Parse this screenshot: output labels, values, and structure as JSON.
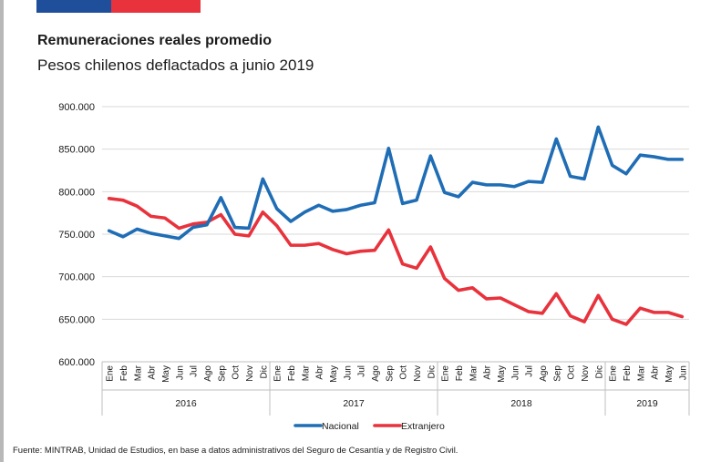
{
  "header": {
    "title": "Remuneraciones reales promedio",
    "subtitle": "Pesos chilenos deflactados a junio 2019"
  },
  "footer": {
    "source": "Fuente: MINTRAB, Unidad de Estudios, en base a datos administrativos del Seguro de Cesantía y de Registro Civil."
  },
  "colors": {
    "nacional": "#1f6db5",
    "extranjero": "#e8323c",
    "grid": "#d9d9d9",
    "flag_blue": "#1f4e9a",
    "flag_red": "#e8323c"
  },
  "chart_data": {
    "type": "line",
    "title": "Remuneraciones reales promedio",
    "subtitle": "Pesos chilenos deflactados a junio 2019",
    "xlabel": "",
    "ylabel": "",
    "ylim": [
      600000,
      900000
    ],
    "yticks": [
      600000,
      650000,
      700000,
      750000,
      800000,
      850000,
      900000
    ],
    "ytick_labels": [
      "600.000",
      "650.000",
      "700.000",
      "750.000",
      "800.000",
      "850.000",
      "900.000"
    ],
    "grid": true,
    "legend": "bottom-center",
    "years": [
      {
        "label": "2016",
        "months": 12
      },
      {
        "label": "2017",
        "months": 12
      },
      {
        "label": "2018",
        "months": 12
      },
      {
        "label": "2019",
        "months": 6
      }
    ],
    "categories": [
      "Ene",
      "Feb",
      "Mar",
      "Abr",
      "May",
      "Jun",
      "Jul",
      "Ago",
      "Sep",
      "Oct",
      "Nov",
      "Dic",
      "Ene",
      "Feb",
      "Mar",
      "Abr",
      "May",
      "Jun",
      "Jul",
      "Ago",
      "Sep",
      "Oct",
      "Nov",
      "Dic",
      "Ene",
      "Feb",
      "Mar",
      "Abr",
      "May",
      "Jun",
      "Jul",
      "Ago",
      "Sep",
      "Oct",
      "Nov",
      "Dic",
      "Ene",
      "Feb",
      "Mar",
      "Abr",
      "May",
      "Jun"
    ],
    "series": [
      {
        "name": "Nacional",
        "color": "#1f6db5",
        "values": [
          754000,
          747000,
          756000,
          751000,
          748000,
          745000,
          758000,
          761000,
          793000,
          758000,
          757000,
          815000,
          780000,
          765000,
          776000,
          784000,
          777000,
          779000,
          784000,
          787000,
          851000,
          786000,
          790000,
          842000,
          799000,
          794000,
          811000,
          808000,
          808000,
          806000,
          812000,
          811000,
          862000,
          818000,
          815000,
          876000,
          831000,
          821000,
          843000,
          841000,
          838000,
          838000
        ]
      },
      {
        "name": "Extranjero",
        "color": "#e8323c",
        "values": [
          792000,
          790000,
          783000,
          771000,
          769000,
          757000,
          762000,
          764000,
          773000,
          750000,
          748000,
          776000,
          760000,
          737000,
          737000,
          739000,
          732000,
          727000,
          730000,
          731000,
          755000,
          715000,
          710000,
          735000,
          698000,
          684000,
          687000,
          674000,
          675000,
          667000,
          659000,
          657000,
          680000,
          654000,
          647000,
          678000,
          650000,
          644000,
          663000,
          658000,
          658000,
          653000
        ]
      }
    ]
  }
}
